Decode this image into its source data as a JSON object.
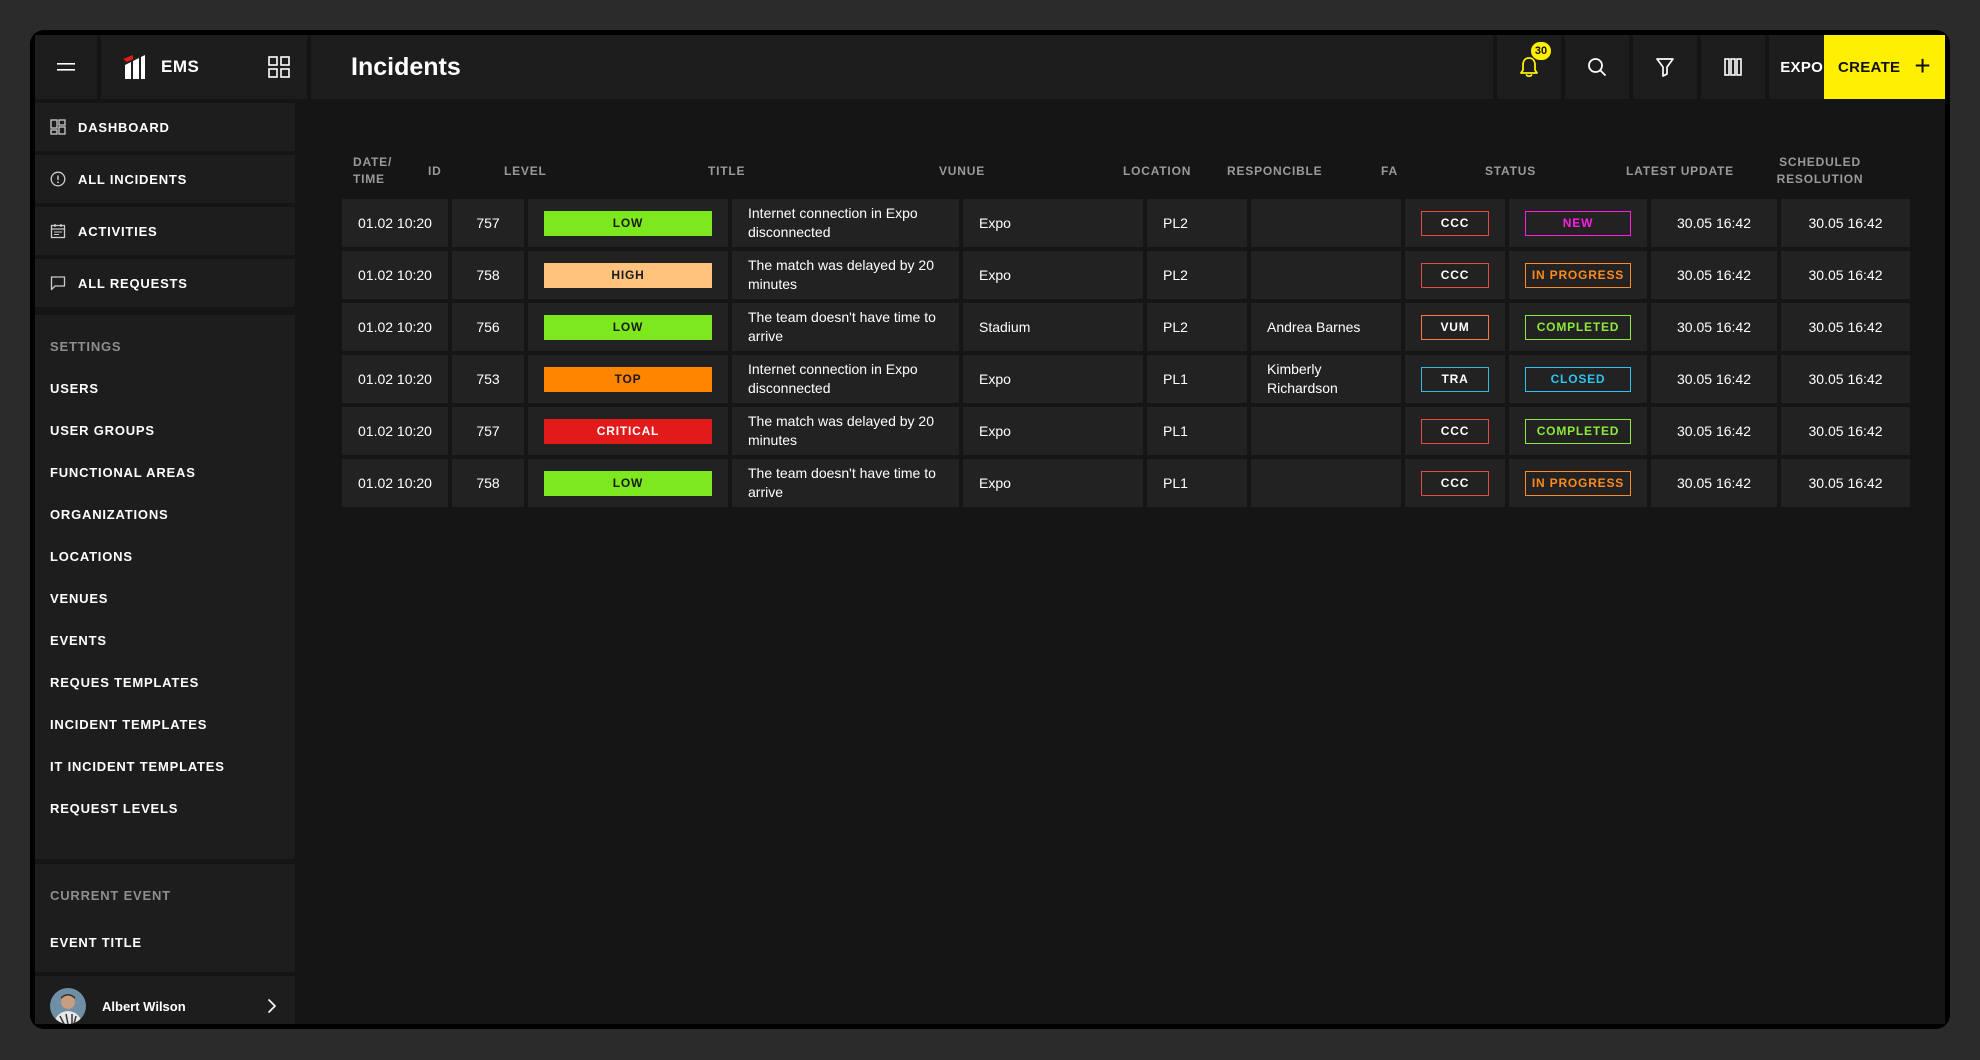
{
  "app": {
    "name": "EMS",
    "page_title": "Incidents"
  },
  "topbar": {
    "notification_count": "30",
    "export_label": "EXPORT",
    "create_label": "CREATE",
    "create_icon": "+"
  },
  "sidebar": {
    "nav": [
      {
        "label": "DASHBOARD",
        "icon": "dashboard-icon"
      },
      {
        "label": "ALL INCIDENTS",
        "icon": "alert-circle-icon"
      },
      {
        "label": "ACTIVITIES",
        "icon": "calendar-icon"
      },
      {
        "label": "ALL REQUESTS",
        "icon": "chat-icon"
      }
    ],
    "settings_label": "SETTINGS",
    "settings": [
      "USERS",
      "USER GROUPS",
      "FUNCTIONAL AREAS",
      "ORGANIZATIONS",
      "LOCATIONS",
      "VENUES",
      "EVENTS",
      "REQUES TEMPLATES",
      "INCIDENT TEMPLATES",
      "IT INCIDENT TEMPLATES",
      "REQUEST LEVELS"
    ],
    "current_event_label": "CURRENT EVENT",
    "event_title": "EVENT TITLE",
    "user": {
      "name": "Albert Wilson"
    }
  },
  "table": {
    "columns": [
      "DATE/ TIME",
      "ID",
      "LEVEL",
      "TITLE",
      "VUNUE",
      "LOCATION",
      "RESPONCIBLE",
      "FA",
      "STATUS",
      "LATEST UPDATE",
      "SCHEDULED RESOLUTION"
    ],
    "rows": [
      {
        "datetime": "01.02 10:20",
        "id": "757",
        "level": "LOW",
        "title": "Internet connection in Expo disconnected",
        "venue": "Expo",
        "location": "PL2",
        "responsible": "",
        "fa": "CCC",
        "status": "NEW",
        "latest_update": "30.05 16:42",
        "scheduled": "30.05 16:42"
      },
      {
        "datetime": "01.02 10:20",
        "id": "758",
        "level": "HIGH",
        "title": "The match was delayed by 20 minutes",
        "venue": "Expo",
        "location": "PL2",
        "responsible": "",
        "fa": "CCC",
        "status": "IN PROGRESS",
        "latest_update": "30.05 16:42",
        "scheduled": "30.05 16:42"
      },
      {
        "datetime": "01.02 10:20",
        "id": "756",
        "level": "LOW",
        "title": "The team doesn't have time to arrive",
        "venue": "Stadium",
        "location": "PL2",
        "responsible": "Andrea Barnes",
        "fa": "VUM",
        "status": "COMPLETED",
        "latest_update": "30.05 16:42",
        "scheduled": "30.05 16:42"
      },
      {
        "datetime": "01.02 10:20",
        "id": "753",
        "level": "TOP",
        "title": "Internet connection in Expo disconnected",
        "venue": "Expo",
        "location": "PL1",
        "responsible": "Kimberly Richardson",
        "fa": "TRA",
        "status": "CLOSED",
        "latest_update": "30.05 16:42",
        "scheduled": "30.05 16:42"
      },
      {
        "datetime": "01.02 10:20",
        "id": "757",
        "level": "CRITICAL",
        "title": "The match was delayed by 20 minutes",
        "venue": "Expo",
        "location": "PL1",
        "responsible": "",
        "fa": "CCC",
        "status": "COMPLETED",
        "latest_update": "30.05 16:42",
        "scheduled": "30.05 16:42"
      },
      {
        "datetime": "01.02 10:20",
        "id": "758",
        "level": "LOW",
        "title": "The team doesn't have time to arrive",
        "venue": "Expo",
        "location": "PL1",
        "responsible": "",
        "fa": "CCC",
        "status": "IN PROGRESS",
        "latest_update": "30.05 16:42",
        "scheduled": "30.05 16:42"
      }
    ]
  },
  "colors": {
    "accent": "#fff000",
    "level": {
      "LOW": "#7ee81e",
      "HIGH": "#ffc37e",
      "TOP": "#ff8400",
      "CRITICAL": "#e31a1a"
    },
    "fa": {
      "CCC": "#e24a4a",
      "VUM": "#ff7a3c",
      "TRA": "#3cb8e6"
    },
    "status": {
      "NEW": "#ff1ee4",
      "IN PROGRESS": "#ff8a1e",
      "COMPLETED": "#8ee83a",
      "CLOSED": "#2ec4f0"
    }
  }
}
